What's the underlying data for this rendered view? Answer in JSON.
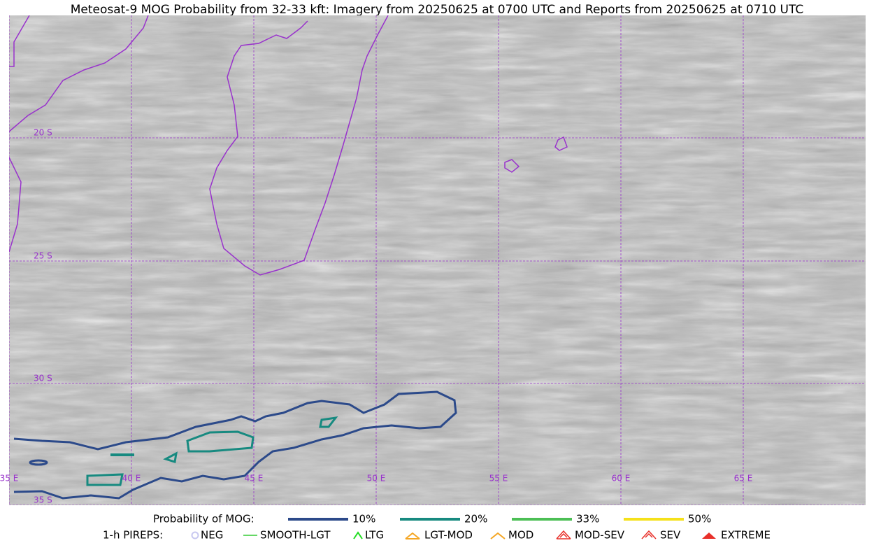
{
  "header": {
    "title": "Meteosat-9 MOG Probability from 32-33 kft: Imagery from 20250625 at 0700 UTC and Reports from 20250625 at 0710 UTC"
  },
  "map": {
    "lat_labels": [
      "20 S",
      "25 S",
      "30 S",
      "35 S"
    ],
    "lon_labels": [
      "35 E",
      "40 E",
      "45 E",
      "50 E",
      "55 E",
      "60 E",
      "65 E"
    ]
  },
  "legend": {
    "probability_title": "Probability of MOG:",
    "probability": [
      {
        "label": "10%",
        "color": "#2c4a8a"
      },
      {
        "label": "20%",
        "color": "#178a80"
      },
      {
        "label": "33%",
        "color": "#4cbf55"
      },
      {
        "label": "50%",
        "color": "#f5e11a"
      }
    ],
    "pireps_title": "1-h PIREPS:",
    "pireps": [
      {
        "label": "NEG",
        "color": "#c8c8f0"
      },
      {
        "label": "SMOOTH-LGT",
        "color": "#33cc33"
      },
      {
        "label": "LTG",
        "color": "#22dd22"
      },
      {
        "label": "LGT-MOD",
        "color": "#f5a623"
      },
      {
        "label": "MOD",
        "color": "#f5a623"
      },
      {
        "label": "MOD-SEV",
        "color": "#e8302a"
      },
      {
        "label": "SEV",
        "color": "#e8302a"
      },
      {
        "label": "EXTREME",
        "color": "#e8302a"
      }
    ]
  }
}
